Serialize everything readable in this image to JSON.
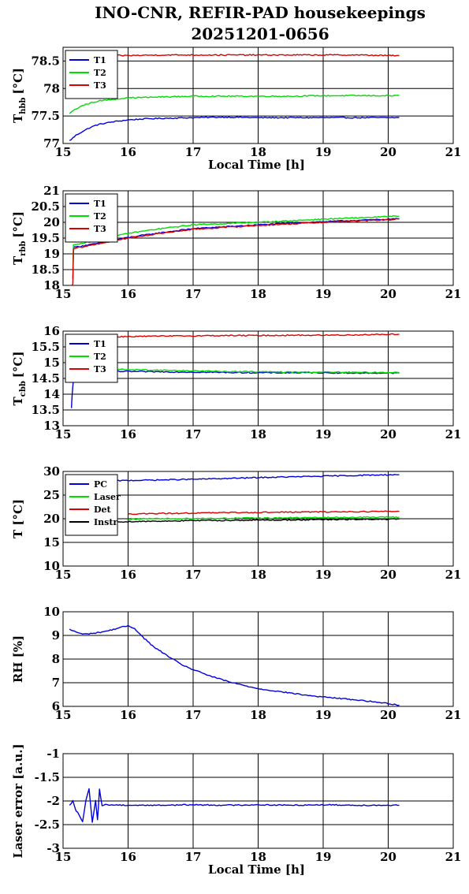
{
  "title": {
    "line1": "INO-CNR, REFIR-PAD housekeepings",
    "line2": "20251201-0656"
  },
  "chart_data": [
    {
      "type": "line",
      "ylabel_main": "T",
      "ylabel_sub": "hbb",
      "ylabel_unit": "[°C]",
      "xlabel": "Local Time [h]",
      "xlim": [
        15,
        21
      ],
      "ylim": [
        77,
        78.75
      ],
      "xticks": [
        "15",
        "16",
        "17",
        "18",
        "19",
        "20",
        "21"
      ],
      "yticks": [
        77,
        77.5,
        78,
        78.5
      ],
      "ytick_labels": [
        "77",
        "77.5",
        "78",
        "78.5"
      ],
      "grid": true,
      "legend_position": "top-left",
      "series": [
        {
          "name": "T1",
          "color": "#0000dd",
          "x": [
            15.1,
            15.2,
            15.3,
            15.4,
            15.5,
            15.6,
            15.8,
            16.0,
            16.3,
            16.6,
            17.0,
            17.5,
            18.0,
            18.5,
            19.0,
            19.5,
            20.0,
            20.17
          ],
          "y": [
            77.05,
            77.15,
            77.22,
            77.28,
            77.33,
            77.36,
            77.4,
            77.43,
            77.45,
            77.46,
            77.47,
            77.48,
            77.47,
            77.47,
            77.47,
            77.47,
            77.47,
            77.47
          ]
        },
        {
          "name": "T2",
          "color": "#00dd00",
          "x": [
            15.1,
            15.2,
            15.3,
            15.4,
            15.5,
            15.6,
            15.8,
            16.0,
            16.3,
            16.6,
            17.0,
            17.5,
            18.0,
            18.5,
            19.0,
            19.5,
            20.0,
            20.17
          ],
          "y": [
            77.55,
            77.63,
            77.69,
            77.73,
            77.76,
            77.78,
            77.81,
            77.83,
            77.84,
            77.85,
            77.86,
            77.86,
            77.86,
            77.86,
            77.87,
            77.87,
            77.87,
            77.87
          ]
        },
        {
          "name": "T3",
          "color": "#dd0000",
          "x": [
            15.6,
            16.0,
            16.5,
            17.0,
            17.5,
            18.0,
            18.5,
            19.0,
            19.5,
            20.0,
            20.17
          ],
          "y": [
            78.6,
            78.6,
            78.61,
            78.61,
            78.61,
            78.61,
            78.61,
            78.61,
            78.61,
            78.6,
            78.6
          ]
        }
      ]
    },
    {
      "type": "line",
      "ylabel_main": "T",
      "ylabel_sub": "rbb",
      "ylabel_unit": "[°C]",
      "xlabel": "",
      "xlim": [
        15,
        21
      ],
      "ylim": [
        18,
        21
      ],
      "xticks": [
        "15",
        "16",
        "17",
        "18",
        "19",
        "20",
        "21"
      ],
      "yticks": [
        18,
        18.5,
        19,
        19.5,
        20,
        20.5,
        21
      ],
      "ytick_labels": [
        "18",
        "18.5",
        "19",
        "19.5",
        "20",
        "20.5",
        "21"
      ],
      "grid": true,
      "legend_position": "top-left",
      "series": [
        {
          "name": "T1",
          "color": "#0000dd",
          "x": [
            15.15,
            15.16,
            15.2,
            15.5,
            16.0,
            16.5,
            17.0,
            17.5,
            18.0,
            18.5,
            19.0,
            19.5,
            20.0,
            20.17
          ],
          "y": [
            18.2,
            19.2,
            19.22,
            19.32,
            19.52,
            19.67,
            19.8,
            19.86,
            19.92,
            19.97,
            20.02,
            20.06,
            20.1,
            20.12
          ]
        },
        {
          "name": "T2",
          "color": "#00dd00",
          "x": [
            15.15,
            15.16,
            15.2,
            15.5,
            16.0,
            16.5,
            17.0,
            17.5,
            18.0,
            18.5,
            19.0,
            19.5,
            20.0,
            20.17
          ],
          "y": [
            18.5,
            19.28,
            19.3,
            19.42,
            19.65,
            19.8,
            19.92,
            19.96,
            20.0,
            20.05,
            20.1,
            20.14,
            20.18,
            20.2
          ]
        },
        {
          "name": "T3",
          "color": "#dd0000",
          "x": [
            15.14,
            15.15,
            15.16,
            15.2,
            15.5,
            16.0,
            16.5,
            17.0,
            17.5,
            18.0,
            18.5,
            19.0,
            19.5,
            20.0,
            20.17
          ],
          "y": [
            18.0,
            18.05,
            19.15,
            19.18,
            19.3,
            19.5,
            19.65,
            19.78,
            19.84,
            19.9,
            19.95,
            20.0,
            20.04,
            20.08,
            20.1
          ]
        }
      ]
    },
    {
      "type": "line",
      "ylabel_main": "T",
      "ylabel_sub": "cbb",
      "ylabel_unit": "[°C]",
      "xlabel": "",
      "xlim": [
        15,
        21
      ],
      "ylim": [
        13,
        16
      ],
      "xticks": [
        "15",
        "16",
        "17",
        "18",
        "19",
        "20",
        "21"
      ],
      "yticks": [
        13,
        13.5,
        14,
        14.5,
        15,
        15.5,
        16
      ],
      "ytick_labels": [
        "13",
        "13.5",
        "14",
        "14.5",
        "15",
        "15.5",
        "16"
      ],
      "grid": true,
      "legend_position": "top-left",
      "series": [
        {
          "name": "T1",
          "color": "#0000dd",
          "x": [
            15.13,
            15.14,
            15.16,
            15.2,
            15.5,
            16.0,
            16.5,
            17.0,
            17.5,
            18.0,
            18.5,
            19.0,
            19.5,
            20.0,
            20.17
          ],
          "y": [
            13.55,
            14.0,
            14.5,
            14.7,
            14.72,
            14.72,
            14.71,
            14.7,
            14.69,
            14.68,
            14.68,
            14.68,
            14.67,
            14.67,
            14.67
          ]
        },
        {
          "name": "T2",
          "color": "#00dd00",
          "x": [
            15.2,
            15.5,
            16.0,
            16.5,
            17.0,
            17.5,
            18.0,
            18.5,
            19.0,
            19.5,
            20.0,
            20.17
          ],
          "y": [
            14.8,
            14.8,
            14.78,
            14.76,
            14.74,
            14.72,
            14.71,
            14.7,
            14.7,
            14.69,
            14.69,
            14.69
          ]
        },
        {
          "name": "T3",
          "color": "#dd0000",
          "x": [
            15.8,
            16.0,
            16.5,
            17.0,
            17.5,
            18.0,
            18.5,
            19.0,
            19.5,
            20.0,
            20.17
          ],
          "y": [
            15.82,
            15.83,
            15.84,
            15.85,
            15.86,
            15.86,
            15.87,
            15.87,
            15.88,
            15.9,
            15.9
          ]
        }
      ]
    },
    {
      "type": "line",
      "ylabel_main": "T [°C]",
      "ylabel_sub": "",
      "ylabel_unit": "",
      "xlabel": "",
      "xlim": [
        15,
        21
      ],
      "ylim": [
        10,
        30
      ],
      "xticks": [
        "15",
        "16",
        "17",
        "18",
        "19",
        "20",
        "21"
      ],
      "yticks": [
        10,
        15,
        20,
        25,
        30
      ],
      "ytick_labels": [
        "10",
        "15",
        "20",
        "25",
        "30"
      ],
      "grid": true,
      "legend_position": "top-left",
      "series": [
        {
          "name": "PC",
          "color": "#0000dd",
          "x": [
            15.8,
            16.0,
            16.5,
            17.0,
            17.5,
            18.0,
            18.5,
            19.0,
            19.5,
            20.0,
            20.17
          ],
          "y": [
            28.0,
            28.1,
            28.2,
            28.35,
            28.5,
            28.7,
            28.85,
            29.0,
            29.15,
            29.3,
            29.3
          ]
        },
        {
          "name": "Laser",
          "color": "#00dd00",
          "x": [
            16.0,
            16.5,
            17.0,
            17.5,
            18.0,
            18.5,
            19.0,
            19.5,
            20.0,
            20.17
          ],
          "y": [
            19.9,
            20.0,
            20.05,
            20.1,
            20.15,
            20.2,
            20.25,
            20.3,
            20.35,
            20.35
          ]
        },
        {
          "name": "Det",
          "color": "#dd0000",
          "x": [
            16.0,
            16.5,
            17.0,
            17.5,
            18.0,
            18.5,
            19.0,
            19.5,
            20.0,
            20.17
          ],
          "y": [
            21.0,
            21.1,
            21.2,
            21.3,
            21.35,
            21.4,
            21.45,
            21.5,
            21.55,
            21.55
          ]
        },
        {
          "name": "Instr",
          "color": "#000000",
          "x": [
            15.8,
            16.0,
            16.5,
            17.0,
            17.5,
            18.0,
            18.5,
            19.0,
            19.5,
            20.0,
            20.17
          ],
          "y": [
            19.3,
            19.4,
            19.5,
            19.6,
            19.65,
            19.7,
            19.75,
            19.8,
            19.85,
            19.9,
            19.9
          ]
        }
      ]
    },
    {
      "type": "line",
      "ylabel_main": "RH [%]",
      "ylabel_sub": "",
      "ylabel_unit": "",
      "xlabel": "",
      "xlim": [
        15,
        21
      ],
      "ylim": [
        6,
        10
      ],
      "xticks": [
        "15",
        "16",
        "17",
        "18",
        "19",
        "20",
        "21"
      ],
      "yticks": [
        6,
        7,
        8,
        9,
        10
      ],
      "ytick_labels": [
        "6",
        "7",
        "8",
        "9",
        "10"
      ],
      "grid": true,
      "legend_position": "none",
      "series": [
        {
          "name": "",
          "color": "#0000dd",
          "x": [
            15.1,
            15.2,
            15.3,
            15.5,
            15.7,
            15.9,
            16.0,
            16.1,
            16.2,
            16.4,
            16.6,
            16.8,
            17.0,
            17.3,
            17.6,
            18.0,
            18.4,
            18.8,
            19.2,
            19.6,
            20.0,
            20.17
          ],
          "y": [
            9.25,
            9.15,
            9.05,
            9.1,
            9.2,
            9.35,
            9.4,
            9.3,
            9.0,
            8.5,
            8.15,
            7.8,
            7.55,
            7.25,
            7.0,
            6.75,
            6.6,
            6.45,
            6.35,
            6.25,
            6.12,
            6.05
          ]
        }
      ]
    },
    {
      "type": "line",
      "ylabel_main": "Laser error [a.u.]",
      "ylabel_sub": "",
      "ylabel_unit": "",
      "xlabel": "Local Time [h]",
      "xlim": [
        15,
        21
      ],
      "ylim": [
        -3,
        -1
      ],
      "xticks": [
        "15",
        "16",
        "17",
        "18",
        "19",
        "20",
        "21"
      ],
      "yticks": [
        -3,
        -2.5,
        -2,
        -1.5,
        -1
      ],
      "ytick_labels": [
        "-3",
        "-2.5",
        "-2",
        "-1.5",
        "-1"
      ],
      "grid": true,
      "legend_position": "none",
      "series": [
        {
          "name": "",
          "color": "#0000dd",
          "x": [
            15.1,
            15.15,
            15.2,
            15.25,
            15.3,
            15.35,
            15.4,
            15.45,
            15.5,
            15.53,
            15.56,
            15.6,
            15.65,
            16.0,
            16.5,
            17.0,
            17.5,
            18.0,
            18.5,
            19.0,
            19.5,
            20.0,
            20.17
          ],
          "y": [
            -2.1,
            -2.0,
            -2.2,
            -2.3,
            -2.45,
            -2.0,
            -1.75,
            -2.45,
            -2.0,
            -2.4,
            -1.75,
            -2.1,
            -2.08,
            -2.09,
            -2.09,
            -2.08,
            -2.09,
            -2.08,
            -2.09,
            -2.08,
            -2.09,
            -2.09,
            -2.09
          ]
        }
      ]
    }
  ]
}
